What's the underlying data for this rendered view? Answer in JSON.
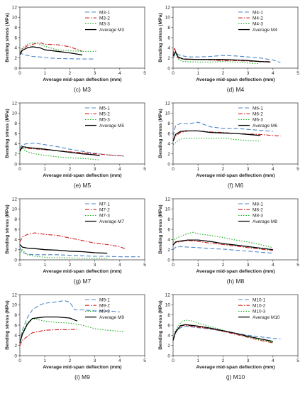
{
  "style": {
    "series_colors": [
      "#4f86c6",
      "#cc2020",
      "#20b020",
      "#000000"
    ],
    "series_dash": [
      "6,3",
      "6,2,1.5,2",
      "1.5,2",
      ""
    ],
    "axis_color": "#444444",
    "caption_color": "#222222"
  },
  "chart_data": [
    {
      "type": "line",
      "caption": "(c) M3",
      "xlabel": "Average mid-span deflection (mm)",
      "ylabel": "Bending stress (MPa)",
      "xlim": [
        0,
        5
      ],
      "ylim": [
        0,
        12
      ],
      "xticks": [
        0,
        1,
        2,
        3,
        4,
        5
      ],
      "yticks": [
        0,
        2,
        4,
        6,
        8,
        10,
        12
      ],
      "legend": "top-right",
      "grid": false,
      "series": [
        {
          "name": "M3-1",
          "x": [
            0,
            0.05,
            0.15,
            0.3,
            0.5,
            0.8,
            1.0,
            1.2,
            1.5,
            2.0,
            2.5,
            3.0
          ],
          "y": [
            2.6,
            2.9,
            2.7,
            2.5,
            2.3,
            2.2,
            2.1,
            2.0,
            1.9,
            1.85,
            1.8,
            1.8
          ]
        },
        {
          "name": "M3-2",
          "x": [
            0,
            0.1,
            0.3,
            0.6,
            0.8,
            1.0,
            1.5,
            2.0,
            2.5
          ],
          "y": [
            2.8,
            3.8,
            4.4,
            4.8,
            5.0,
            4.7,
            4.6,
            4.2,
            3.3
          ]
        },
        {
          "name": "M3-3",
          "x": [
            0,
            0.1,
            0.3,
            0.5,
            0.7,
            1.0,
            1.5,
            2.0,
            2.5,
            3.0,
            3.1
          ],
          "y": [
            2.8,
            4.0,
            4.7,
            5.0,
            4.9,
            4.3,
            3.6,
            3.4,
            3.3,
            3.3,
            3.4
          ]
        },
        {
          "name": "Average M3",
          "x": [
            0,
            0.1,
            0.3,
            0.5,
            0.8,
            1.0,
            1.5,
            2.0,
            2.5
          ],
          "y": [
            2.7,
            3.5,
            4.0,
            4.2,
            4.0,
            3.6,
            3.3,
            3.0,
            2.6
          ]
        }
      ]
    },
    {
      "type": "line",
      "caption": "(d) M4",
      "xlabel": "Average mid-span deflection (mm)",
      "ylabel": "Bending stress (MPa)",
      "xlim": [
        0,
        5
      ],
      "ylim": [
        0,
        12
      ],
      "xticks": [
        0,
        1,
        2,
        3,
        4,
        5
      ],
      "yticks": [
        0,
        2,
        4,
        6,
        8,
        10,
        12
      ],
      "legend": "top-right",
      "grid": false,
      "series": [
        {
          "name": "M4-1",
          "x": [
            0,
            0.1,
            0.3,
            0.6,
            1.0,
            1.5,
            2.0,
            2.5,
            3.0,
            3.5,
            4.0,
            4.3
          ],
          "y": [
            2.0,
            2.9,
            2.5,
            2.2,
            2.2,
            2.3,
            2.5,
            2.4,
            2.2,
            2.0,
            1.6,
            1.1
          ]
        },
        {
          "name": "M4-2",
          "x": [
            0,
            0.05,
            0.2,
            0.5,
            1.0,
            1.5,
            2.0,
            2.5,
            3.0,
            3.5,
            3.9
          ],
          "y": [
            2.5,
            4.0,
            2.0,
            1.7,
            1.7,
            1.6,
            1.5,
            1.5,
            1.4,
            1.3,
            1.3
          ]
        },
        {
          "name": "M4-3",
          "x": [
            0,
            0.1,
            0.2,
            0.4,
            1.0,
            1.5,
            2.0,
            2.5,
            3.0,
            3.4
          ],
          "y": [
            2.0,
            3.0,
            1.8,
            1.3,
            1.2,
            1.2,
            1.3,
            1.2,
            1.0,
            0.9
          ]
        },
        {
          "name": "Average M4",
          "x": [
            0,
            0.1,
            0.2,
            0.4,
            1.0,
            1.5,
            2.0,
            2.5,
            3.0,
            3.5,
            3.9
          ],
          "y": [
            2.4,
            3.2,
            2.2,
            1.8,
            1.7,
            1.7,
            1.7,
            1.6,
            1.5,
            1.3,
            1.2
          ]
        }
      ]
    },
    {
      "type": "line",
      "caption": "(e) M5",
      "xlabel": "Average mid-span deflection (mm)",
      "ylabel": "Bending stress (MPa)",
      "xlim": [
        0,
        5
      ],
      "ylim": [
        0,
        12
      ],
      "xticks": [
        0,
        1,
        2,
        3,
        4,
        5
      ],
      "yticks": [
        0,
        2,
        4,
        6,
        8,
        10,
        12
      ],
      "legend": "top-right",
      "grid": false,
      "series": [
        {
          "name": "M5-1",
          "x": [
            0,
            0.1,
            0.3,
            0.6,
            1.0,
            1.5,
            2.0,
            2.5,
            3.0,
            3.5,
            4.0,
            4.2
          ],
          "y": [
            3.0,
            3.8,
            4.0,
            4.1,
            3.8,
            3.4,
            2.9,
            2.5,
            2.1,
            1.8,
            1.6,
            1.6
          ]
        },
        {
          "name": "M5-2",
          "x": [
            0,
            0.1,
            0.5,
            1.0,
            1.5,
            2.0,
            2.5,
            3.0,
            3.5,
            4.0,
            4.2
          ],
          "y": [
            2.8,
            3.1,
            3.0,
            2.8,
            2.6,
            2.4,
            2.2,
            2.0,
            1.8,
            1.6,
            1.5
          ]
        },
        {
          "name": "M5-3",
          "x": [
            0,
            0.05,
            0.3,
            0.6,
            1.0,
            1.5,
            2.0,
            2.5,
            3.0,
            3.2
          ],
          "y": [
            2.0,
            3.2,
            2.4,
            2.0,
            1.7,
            1.4,
            1.2,
            1.1,
            0.9,
            0.8
          ]
        },
        {
          "name": "Average M5",
          "x": [
            0,
            0.1,
            0.4,
            1.0,
            1.5,
            2.0,
            2.5,
            3.0,
            3.2
          ],
          "y": [
            2.5,
            3.4,
            3.2,
            2.9,
            2.6,
            2.3,
            2.0,
            1.8,
            1.6
          ]
        }
      ]
    },
    {
      "type": "line",
      "caption": "(f) M6",
      "xlabel": "Average mid-span deflection (mm)",
      "ylabel": "Bending stress (MPa)",
      "xlim": [
        0,
        5
      ],
      "ylim": [
        0,
        12
      ],
      "xticks": [
        0,
        1,
        2,
        3,
        4,
        5
      ],
      "yticks": [
        0,
        2,
        4,
        6,
        8,
        10,
        12
      ],
      "legend": "top-right",
      "grid": false,
      "series": [
        {
          "name": "M6-1",
          "x": [
            0,
            0.1,
            0.3,
            0.6,
            1.0,
            1.5,
            2.0,
            2.5,
            3.0,
            3.5,
            4.0
          ],
          "y": [
            5.5,
            7.5,
            8.0,
            7.9,
            8.2,
            7.3,
            7.0,
            7.0,
            6.8,
            6.6,
            6.4
          ]
        },
        {
          "name": "M6-2",
          "x": [
            0,
            0.1,
            0.3,
            0.6,
            1.0,
            1.5,
            2.0,
            2.5,
            3.0,
            3.5,
            4.0,
            4.3
          ],
          "y": [
            4.5,
            5.5,
            6.2,
            6.5,
            6.5,
            6.3,
            6.2,
            6.0,
            5.9,
            5.8,
            5.6,
            5.5
          ]
        },
        {
          "name": "M6-3",
          "x": [
            0,
            0.1,
            0.3,
            0.5,
            1.0,
            1.5,
            2.0,
            2.5,
            3.0,
            3.5
          ],
          "y": [
            3.8,
            4.2,
            4.9,
            5.0,
            5.1,
            5.0,
            5.1,
            4.8,
            4.6,
            4.5
          ]
        },
        {
          "name": "Average M6",
          "x": [
            0,
            0.1,
            0.3,
            0.5,
            1.0,
            1.5,
            2.0,
            2.5,
            3.0,
            3.5
          ],
          "y": [
            4.5,
            5.8,
            6.4,
            6.5,
            6.5,
            6.2,
            6.1,
            6.0,
            5.8,
            5.6
          ]
        }
      ]
    },
    {
      "type": "line",
      "caption": "(g) M7",
      "xlabel": "Average mid-span deflection (mm)",
      "ylabel": "Bending stress (MPa)",
      "xlim": [
        0,
        5
      ],
      "ylim": [
        0,
        12
      ],
      "xticks": [
        0,
        1,
        2,
        3,
        4,
        5
      ],
      "yticks": [
        0,
        2,
        4,
        6,
        8,
        10,
        12
      ],
      "legend": "top-right",
      "grid": false,
      "series": [
        {
          "name": "M7-1",
          "x": [
            0,
            0.1,
            0.3,
            0.6,
            1.0,
            1.5,
            2.0,
            2.5,
            3.0,
            3.5,
            4.0,
            4.5,
            4.8
          ],
          "y": [
            2.5,
            1.5,
            1.1,
            1.0,
            1.0,
            1.0,
            0.9,
            0.8,
            0.7,
            0.7,
            0.6,
            0.6,
            0.6
          ]
        },
        {
          "name": "M7-2",
          "x": [
            0,
            0.1,
            0.3,
            0.6,
            1.0,
            1.5,
            2.0,
            2.5,
            3.0,
            3.5,
            4.0,
            4.2
          ],
          "y": [
            3.5,
            4.5,
            5.0,
            5.3,
            5.0,
            4.8,
            4.3,
            3.8,
            3.3,
            3.0,
            2.6,
            2.2
          ]
        },
        {
          "name": "M7-3",
          "x": [
            0,
            0.1,
            0.3,
            0.6,
            1.0,
            1.5,
            2.0,
            2.5,
            3.0,
            3.5
          ],
          "y": [
            1.0,
            2.0,
            1.0,
            0.7,
            0.5,
            0.4,
            0.4,
            0.3,
            0.3,
            0.3
          ]
        },
        {
          "name": "Average M7",
          "x": [
            0,
            0.1,
            0.3,
            0.6,
            1.0,
            1.5,
            2.0,
            2.5,
            3.0,
            3.5
          ],
          "y": [
            3.0,
            2.5,
            2.3,
            2.2,
            2.0,
            1.9,
            1.7,
            1.6,
            1.4,
            1.3
          ]
        }
      ]
    },
    {
      "type": "line",
      "caption": "(h) M8",
      "xlabel": "Average mid-span deflection (mm)",
      "ylabel": "Bending stress (MPa)",
      "xlim": [
        0,
        5
      ],
      "ylim": [
        0,
        12
      ],
      "xticks": [
        0,
        1,
        2,
        3,
        4,
        5
      ],
      "yticks": [
        0,
        2,
        4,
        6,
        8,
        10,
        12
      ],
      "legend": "top-right",
      "grid": false,
      "series": [
        {
          "name": "M8-1",
          "x": [
            0,
            0.1,
            0.3,
            0.6,
            1.0,
            1.5,
            2.0,
            2.5,
            3.0,
            3.5,
            4.0
          ],
          "y": [
            2.0,
            2.5,
            2.6,
            2.5,
            2.4,
            2.2,
            2.1,
            1.9,
            1.7,
            1.5,
            1.3
          ]
        },
        {
          "name": "M8-2",
          "x": [
            0,
            0.1,
            0.3,
            0.6,
            1.0,
            1.5,
            2.0,
            2.5,
            3.0,
            3.5,
            4.0
          ],
          "y": [
            3.0,
            3.4,
            3.6,
            3.8,
            3.6,
            3.3,
            3.0,
            2.7,
            2.4,
            2.1,
            1.8
          ]
        },
        {
          "name": "M8-3",
          "x": [
            0,
            0.1,
            0.3,
            0.6,
            0.8,
            1.0,
            1.5,
            2.0,
            2.5,
            3.0,
            3.5,
            4.0
          ],
          "y": [
            3.5,
            4.2,
            4.6,
            5.2,
            5.4,
            5.1,
            4.8,
            4.4,
            3.9,
            3.5,
            3.0,
            2.4
          ]
        },
        {
          "name": "Average M8",
          "x": [
            0,
            0.1,
            0.3,
            0.6,
            1.0,
            1.5,
            2.0,
            2.5,
            3.0,
            3.5,
            4.0
          ],
          "y": [
            2.9,
            3.5,
            3.7,
            3.9,
            3.9,
            3.6,
            3.2,
            2.9,
            2.6,
            2.3,
            2.0
          ]
        }
      ]
    },
    {
      "type": "line",
      "caption": "(i) M9",
      "xlabel": "Average mid-span deflection (mm)",
      "ylabel": "Bending stress (MPa)",
      "xlim": [
        0,
        5
      ],
      "ylim": [
        0,
        12
      ],
      "xticks": [
        0,
        1,
        2,
        3,
        4,
        5
      ],
      "yticks": [
        0,
        2,
        4,
        6,
        8,
        10,
        12
      ],
      "legend": "top-right",
      "grid": false,
      "series": [
        {
          "name": "M9-1",
          "x": [
            0,
            0.1,
            0.3,
            0.5,
            0.8,
            1.0,
            1.5,
            1.8,
            2.0,
            2.2,
            2.5,
            3.0,
            3.5,
            4.0
          ],
          "y": [
            2.5,
            5.0,
            7.5,
            9.0,
            10.0,
            10.3,
            10.6,
            10.8,
            10.5,
            9.0,
            9.0,
            8.8,
            8.8,
            8.6
          ]
        },
        {
          "name": "M9-2",
          "x": [
            0,
            0.1,
            0.3,
            0.5,
            0.8,
            1.0,
            1.5,
            2.0,
            2.3
          ],
          "y": [
            2.0,
            3.0,
            3.8,
            4.5,
            4.8,
            5.0,
            5.1,
            5.1,
            5.2
          ]
        },
        {
          "name": "M9-3",
          "x": [
            0,
            0.1,
            0.3,
            0.5,
            0.8,
            1.0,
            1.5,
            2.0,
            2.5,
            3.0,
            3.5,
            4.0,
            4.2
          ],
          "y": [
            2.5,
            4.5,
            6.5,
            7.3,
            7.0,
            6.8,
            6.5,
            6.4,
            6.0,
            5.3,
            5.0,
            4.8,
            4.8
          ]
        },
        {
          "name": "Average M9",
          "x": [
            0,
            0.1,
            0.3,
            0.5,
            0.8,
            1.0,
            1.5,
            2.0,
            2.3
          ],
          "y": [
            2.5,
            4.2,
            6.2,
            7.3,
            7.5,
            7.6,
            7.6,
            7.4,
            6.8
          ]
        }
      ]
    },
    {
      "type": "line",
      "caption": "(j) M10",
      "xlabel": "Average mid-span deflection (mm)",
      "ylabel": "Bending stress (MPa)",
      "xlim": [
        0,
        5
      ],
      "ylim": [
        0,
        12
      ],
      "xticks": [
        0,
        1,
        2,
        3,
        4,
        5
      ],
      "yticks": [
        0,
        2,
        4,
        6,
        8,
        10,
        12
      ],
      "legend": "top-right",
      "grid": false,
      "series": [
        {
          "name": "M10-1",
          "x": [
            0,
            0.1,
            0.3,
            0.5,
            1.0,
            1.5,
            2.0,
            2.5,
            3.0,
            3.5,
            4.0,
            4.3
          ],
          "y": [
            3.0,
            4.5,
            5.5,
            5.8,
            5.5,
            5.2,
            4.8,
            4.4,
            4.0,
            3.7,
            3.4,
            3.3
          ]
        },
        {
          "name": "M10-2",
          "x": [
            0,
            0.1,
            0.3,
            0.5,
            1.0,
            1.5,
            2.0,
            2.5,
            3.0,
            3.5,
            4.0
          ],
          "y": [
            3.0,
            4.6,
            5.8,
            6.0,
            5.6,
            5.3,
            4.8,
            4.2,
            3.6,
            3.0,
            2.5
          ]
        },
        {
          "name": "M10-3",
          "x": [
            0,
            0.1,
            0.3,
            0.5,
            0.8,
            1.0,
            1.5,
            2.0,
            2.5,
            3.0,
            3.5,
            4.0
          ],
          "y": [
            3.2,
            5.0,
            6.5,
            7.0,
            6.8,
            6.4,
            5.7,
            5.0,
            4.4,
            3.7,
            3.1,
            2.6
          ]
        },
        {
          "name": "Average M10",
          "x": [
            0,
            0.1,
            0.3,
            0.5,
            1.0,
            1.5,
            2.0,
            2.5,
            3.0,
            3.5,
            4.0
          ],
          "y": [
            3.0,
            4.7,
            5.9,
            6.1,
            5.8,
            5.4,
            4.9,
            4.4,
            3.8,
            3.3,
            2.8
          ]
        }
      ]
    }
  ]
}
